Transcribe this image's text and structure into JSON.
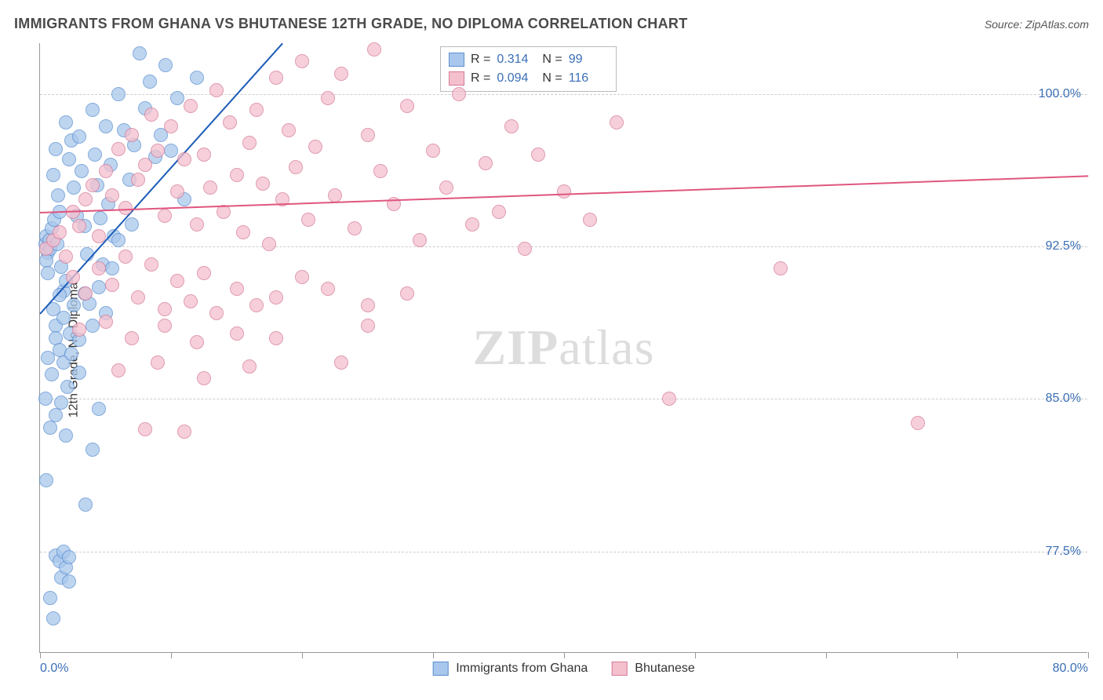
{
  "title": "IMMIGRANTS FROM GHANA VS BHUTANESE 12TH GRADE, NO DIPLOMA CORRELATION CHART",
  "source": "Source: ZipAtlas.com",
  "ylabel": "12th Grade, No Diploma",
  "watermark_zip": "ZIP",
  "watermark_atlas": "atlas",
  "chart": {
    "type": "scatter",
    "xlim": [
      0,
      80
    ],
    "ylim": [
      72.5,
      102.5
    ],
    "ytick_values": [
      77.5,
      85.0,
      92.5,
      100.0
    ],
    "ytick_labels": [
      "77.5%",
      "85.0%",
      "92.5%",
      "100.0%"
    ],
    "xtick_values": [
      0,
      10,
      20,
      30,
      40,
      50,
      60,
      70,
      80
    ],
    "xtick_labels_shown": {
      "0": "0.0%",
      "80": "80.0%"
    },
    "background_color": "#ffffff",
    "grid_color": "#cccccc",
    "axis_color": "#999999",
    "point_radius": 9,
    "point_opacity": 0.75,
    "series": [
      {
        "name": "Immigrants from Ghana",
        "fill": "#a9c7ec",
        "stroke": "#5a8fd0",
        "trend_color": "#1b5bb8",
        "trend_width": 2,
        "R": "0.314",
        "N": "99",
        "trend": {
          "x1": 0,
          "y1": 89.2,
          "x2": 18.5,
          "y2": 102.5
        },
        "points": [
          [
            0.4,
            92.6
          ],
          [
            0.5,
            93.0
          ],
          [
            0.6,
            92.2
          ],
          [
            0.7,
            92.8
          ],
          [
            0.8,
            92.4
          ],
          [
            0.9,
            93.4
          ],
          [
            0.5,
            91.8
          ],
          [
            0.6,
            91.2
          ],
          [
            1.0,
            96.0
          ],
          [
            1.2,
            97.3
          ],
          [
            1.4,
            95.0
          ],
          [
            1.1,
            93.8
          ],
          [
            1.5,
            94.2
          ],
          [
            1.3,
            92.6
          ],
          [
            1.6,
            91.5
          ],
          [
            1.8,
            90.3
          ],
          [
            2.0,
            98.6
          ],
          [
            2.2,
            96.8
          ],
          [
            2.4,
            97.7
          ],
          [
            2.6,
            95.4
          ],
          [
            2.8,
            94.0
          ],
          [
            3.0,
            97.9
          ],
          [
            3.2,
            96.2
          ],
          [
            3.4,
            93.5
          ],
          [
            3.6,
            92.1
          ],
          [
            3.8,
            89.7
          ],
          [
            4.0,
            99.2
          ],
          [
            4.2,
            97.0
          ],
          [
            4.4,
            95.5
          ],
          [
            4.6,
            93.9
          ],
          [
            4.8,
            91.6
          ],
          [
            5.0,
            98.4
          ],
          [
            5.2,
            94.6
          ],
          [
            5.4,
            96.5
          ],
          [
            5.6,
            93.0
          ],
          [
            6.0,
            100.0
          ],
          [
            6.4,
            98.2
          ],
          [
            6.8,
            95.8
          ],
          [
            7.2,
            97.5
          ],
          [
            7.6,
            102.0
          ],
          [
            8.0,
            99.3
          ],
          [
            8.4,
            100.6
          ],
          [
            8.8,
            96.9
          ],
          [
            9.2,
            98.0
          ],
          [
            9.6,
            101.4
          ],
          [
            10.0,
            97.2
          ],
          [
            10.5,
            99.8
          ],
          [
            11.0,
            94.8
          ],
          [
            1.0,
            89.4
          ],
          [
            1.2,
            88.6
          ],
          [
            1.5,
            90.1
          ],
          [
            1.8,
            89.0
          ],
          [
            2.0,
            90.8
          ],
          [
            2.3,
            88.2
          ],
          [
            2.6,
            89.6
          ],
          [
            3.0,
            87.9
          ],
          [
            3.4,
            90.2
          ],
          [
            4.0,
            88.6
          ],
          [
            4.5,
            90.5
          ],
          [
            5.0,
            89.2
          ],
          [
            5.5,
            91.4
          ],
          [
            6.0,
            92.8
          ],
          [
            7.0,
            93.6
          ],
          [
            12.0,
            100.8
          ],
          [
            0.6,
            87.0
          ],
          [
            0.9,
            86.2
          ],
          [
            1.2,
            88.0
          ],
          [
            1.5,
            87.4
          ],
          [
            1.8,
            86.8
          ],
          [
            2.1,
            85.6
          ],
          [
            2.4,
            87.2
          ],
          [
            3.0,
            86.3
          ],
          [
            0.4,
            85.0
          ],
          [
            0.8,
            83.6
          ],
          [
            1.2,
            84.2
          ],
          [
            1.6,
            84.8
          ],
          [
            2.0,
            83.2
          ],
          [
            3.5,
            79.8
          ],
          [
            4.0,
            82.5
          ],
          [
            4.5,
            84.5
          ],
          [
            0.5,
            81.0
          ],
          [
            1.2,
            77.3
          ],
          [
            1.5,
            77.0
          ],
          [
            1.6,
            76.2
          ],
          [
            1.8,
            77.5
          ],
          [
            2.0,
            76.7
          ],
          [
            2.2,
            77.2
          ],
          [
            0.8,
            75.2
          ],
          [
            1.0,
            74.2
          ],
          [
            2.2,
            76.0
          ]
        ]
      },
      {
        "name": "Bhutanese",
        "fill": "#f4c0ce",
        "stroke": "#d67a96",
        "trend_color": "#e0567e",
        "trend_width": 2,
        "R": "0.094",
        "N": "116",
        "trend": {
          "x1": 0,
          "y1": 94.2,
          "x2": 80,
          "y2": 96.0
        },
        "points": [
          [
            0.5,
            92.4
          ],
          [
            1.0,
            92.8
          ],
          [
            1.5,
            93.2
          ],
          [
            2.0,
            92.0
          ],
          [
            2.5,
            94.2
          ],
          [
            3.0,
            93.5
          ],
          [
            3.5,
            94.8
          ],
          [
            4.0,
            95.5
          ],
          [
            4.5,
            93.0
          ],
          [
            5.0,
            96.2
          ],
          [
            5.5,
            95.0
          ],
          [
            6.0,
            97.3
          ],
          [
            6.5,
            94.4
          ],
          [
            7.0,
            98.0
          ],
          [
            7.5,
            95.8
          ],
          [
            8.0,
            96.5
          ],
          [
            8.5,
            99.0
          ],
          [
            9.0,
            97.2
          ],
          [
            9.5,
            94.0
          ],
          [
            10.0,
            98.4
          ],
          [
            10.5,
            95.2
          ],
          [
            11.0,
            96.8
          ],
          [
            11.5,
            99.4
          ],
          [
            12.0,
            93.6
          ],
          [
            12.5,
            97.0
          ],
          [
            13.0,
            95.4
          ],
          [
            13.5,
            100.2
          ],
          [
            14.0,
            94.2
          ],
          [
            14.5,
            98.6
          ],
          [
            15.0,
            96.0
          ],
          [
            15.5,
            93.2
          ],
          [
            16.0,
            97.6
          ],
          [
            16.5,
            99.2
          ],
          [
            17.0,
            95.6
          ],
          [
            17.5,
            92.6
          ],
          [
            18.0,
            100.8
          ],
          [
            18.5,
            94.8
          ],
          [
            19.0,
            98.2
          ],
          [
            19.5,
            96.4
          ],
          [
            20.0,
            101.6
          ],
          [
            20.5,
            93.8
          ],
          [
            21.0,
            97.4
          ],
          [
            22.0,
            99.8
          ],
          [
            22.5,
            95.0
          ],
          [
            23.0,
            101.0
          ],
          [
            24.0,
            93.4
          ],
          [
            25.0,
            98.0
          ],
          [
            25.5,
            102.2
          ],
          [
            26.0,
            96.2
          ],
          [
            27.0,
            94.6
          ],
          [
            28.0,
            99.4
          ],
          [
            29.0,
            92.8
          ],
          [
            30.0,
            97.2
          ],
          [
            31.0,
            95.4
          ],
          [
            32.0,
            100.0
          ],
          [
            33.0,
            93.6
          ],
          [
            34.0,
            96.6
          ],
          [
            35.0,
            94.2
          ],
          [
            36.0,
            98.4
          ],
          [
            37.0,
            92.4
          ],
          [
            38.0,
            97.0
          ],
          [
            40.0,
            95.2
          ],
          [
            42.0,
            93.8
          ],
          [
            44.0,
            98.6
          ],
          [
            2.5,
            91.0
          ],
          [
            3.5,
            90.2
          ],
          [
            4.5,
            91.4
          ],
          [
            5.5,
            90.6
          ],
          [
            6.5,
            92.0
          ],
          [
            7.5,
            90.0
          ],
          [
            8.5,
            91.6
          ],
          [
            9.5,
            89.4
          ],
          [
            10.5,
            90.8
          ],
          [
            11.5,
            89.8
          ],
          [
            12.5,
            91.2
          ],
          [
            13.5,
            89.2
          ],
          [
            15.0,
            90.4
          ],
          [
            16.5,
            89.6
          ],
          [
            18.0,
            90.0
          ],
          [
            20.0,
            91.0
          ],
          [
            22.0,
            90.4
          ],
          [
            25.0,
            89.6
          ],
          [
            28.0,
            90.2
          ],
          [
            3.0,
            88.4
          ],
          [
            5.0,
            88.8
          ],
          [
            7.0,
            88.0
          ],
          [
            9.5,
            88.6
          ],
          [
            12.0,
            87.8
          ],
          [
            15.0,
            88.2
          ],
          [
            18.0,
            88.0
          ],
          [
            25.0,
            88.6
          ],
          [
            6.0,
            86.4
          ],
          [
            9.0,
            86.8
          ],
          [
            12.5,
            86.0
          ],
          [
            16.0,
            86.6
          ],
          [
            23.0,
            86.8
          ],
          [
            8.0,
            83.5
          ],
          [
            11.0,
            83.4
          ],
          [
            48.0,
            85.0
          ],
          [
            56.5,
            91.4
          ],
          [
            67.0,
            83.8
          ]
        ]
      }
    ]
  },
  "legend_top": {
    "r_label": "R =",
    "n_label": "N ="
  },
  "legend_bottom": {
    "items": [
      "Immigrants from Ghana",
      "Bhutanese"
    ]
  }
}
